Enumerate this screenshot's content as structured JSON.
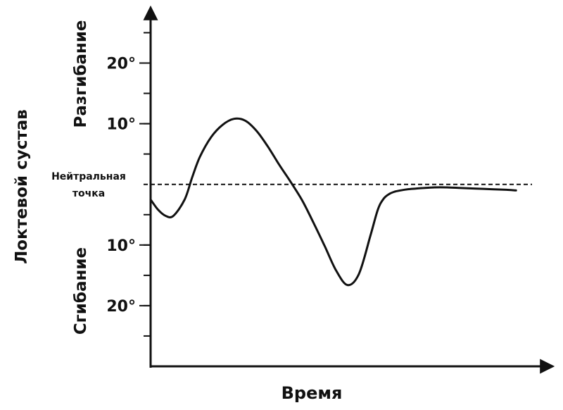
{
  "chart_data": {
    "type": "line",
    "xlabel": "Время",
    "ylabel": "Локтевой сустав",
    "upper_region_label": "Разгибание",
    "lower_region_label": "Сгибание",
    "neutral_label_line1": "Нейтральная",
    "neutral_label_line2": "точка",
    "ytick_labels": [
      {
        "value": 20,
        "label": "20°"
      },
      {
        "value": 10,
        "label": "10°"
      },
      {
        "value": -10,
        "label": "10°"
      },
      {
        "value": -20,
        "label": "20°"
      }
    ],
    "ylim": [
      -30,
      29
    ],
    "xlim": [
      0,
      100
    ],
    "minor_tick_step": 5,
    "neutral_line": {
      "value": 0,
      "style": "dashed"
    },
    "series": [
      {
        "x": [
          0,
          2,
          4,
          6,
          9,
          11,
          13,
          16,
          19,
          22,
          25,
          28,
          31,
          34,
          37,
          40,
          43,
          46,
          49,
          52,
          55,
          58,
          60,
          61.5,
          63,
          64.5,
          66,
          68,
          70,
          72,
          75,
          78,
          82,
          86,
          90,
          94,
          96.5
        ],
        "y": [
          -2.5,
          -4.2,
          -5.2,
          -5.2,
          -2.5,
          1.2,
          4.5,
          7.8,
          9.8,
          10.8,
          10.5,
          8.8,
          6.2,
          3.2,
          0.4,
          -2.6,
          -6.3,
          -10.2,
          -14.2,
          -16.6,
          -14.8,
          -8.6,
          -4.2,
          -2.4,
          -1.6,
          -1.2,
          -1.0,
          -0.8,
          -0.7,
          -0.6,
          -0.5,
          -0.5,
          -0.6,
          -0.7,
          -0.8,
          -0.9,
          -1.0
        ]
      }
    ]
  }
}
